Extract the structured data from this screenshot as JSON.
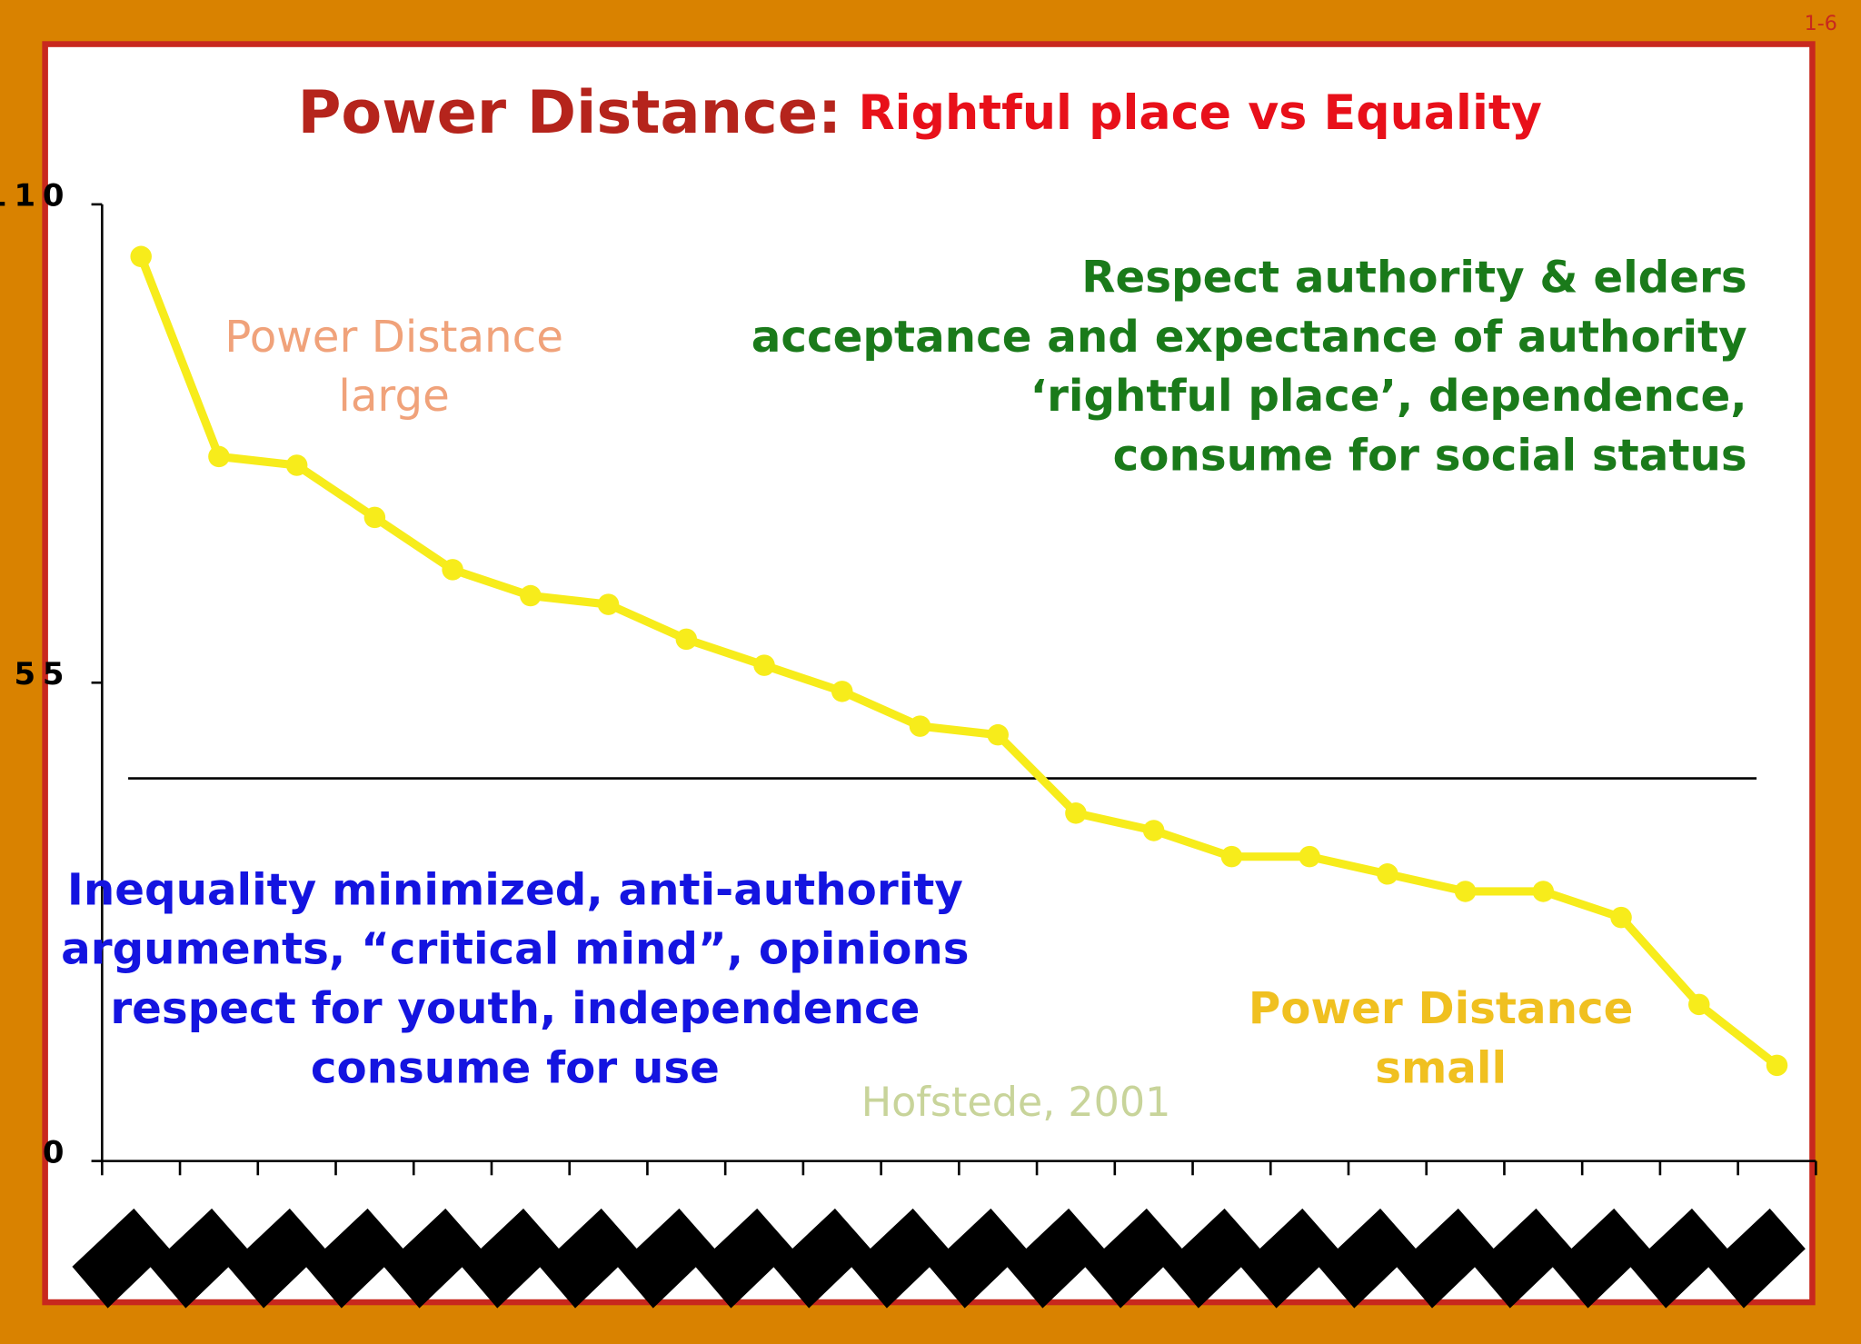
{
  "page_number": "1-6",
  "chart_data": {
    "type": "line",
    "title": "Power Distance:",
    "subtitle": "Rightful place vs Equality",
    "title_color": "#b5241c",
    "subtitle_color": "#e8101a",
    "categories": [
      null,
      null,
      null,
      null,
      null,
      null,
      null,
      null,
      null,
      null,
      null,
      null,
      null,
      null,
      null,
      null,
      null,
      null,
      null,
      null,
      null,
      null
    ],
    "series": [
      {
        "color": "#f7ec1b",
        "values": [
          104,
          81,
          80,
          74,
          68,
          65,
          64,
          60,
          57,
          54,
          50,
          49,
          40,
          38,
          35,
          35,
          33,
          31,
          31,
          28,
          18,
          11
        ]
      }
    ],
    "reference_line": 44,
    "ylim": [
      0,
      110
    ],
    "yticks": [
      0,
      55,
      110
    ],
    "annotations": [
      {
        "lines": [
          "Power Distance",
          "large"
        ],
        "color": "#f0a27a",
        "bold": false
      },
      {
        "lines": [
          "Respect authority & elders",
          "acceptance and expectance of authority",
          "‘rightful place’, dependence,",
          "consume for social status"
        ],
        "color": "#1a7a1a",
        "bold": true
      },
      {
        "lines": [
          "Inequality minimized, anti-authority",
          "arguments, “critical mind”, opinions",
          "respect for youth, independence",
          "consume for use"
        ],
        "color": "#1414e0",
        "bold": true
      },
      {
        "lines": [
          "Hofstede, 2001"
        ],
        "color": "#c8d49a",
        "bold": false
      },
      {
        "lines": [
          "Power Distance",
          "small"
        ],
        "color": "#f0c020",
        "bold": true
      }
    ]
  }
}
